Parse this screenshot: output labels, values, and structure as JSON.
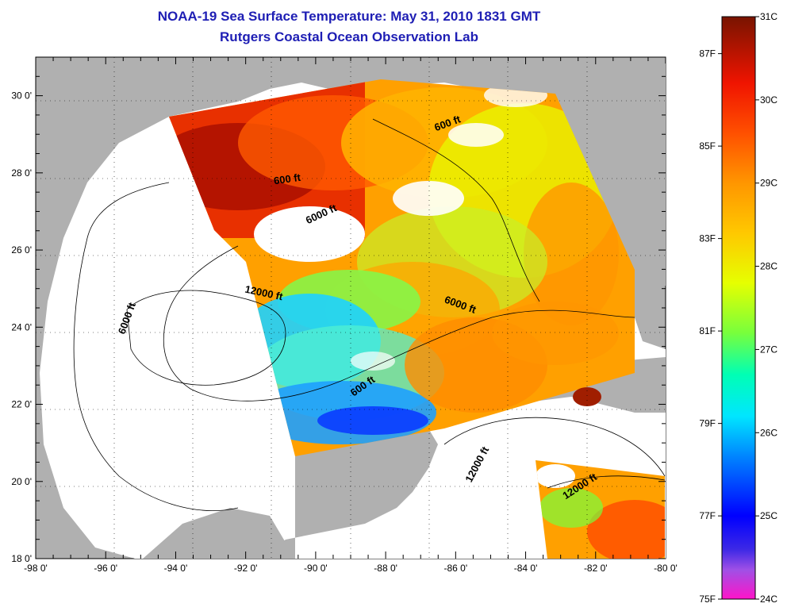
{
  "title_line1": "NOAA-19 Sea Surface Temperature:  May 31, 2010 1831 GMT",
  "title_line2": "Rutgers Coastal Ocean Observation Lab",
  "x_ticks": [
    "-98 0'",
    "-96 0'",
    "-94 0'",
    "-92 0'",
    "-90 0'",
    "-88 0'",
    "-86 0'",
    "-84 0'",
    "-82 0'",
    "-80 0'"
  ],
  "y_ticks": [
    "30 0'",
    "28 0'",
    "26 0'",
    "24 0'",
    "22 0'",
    "20 0'",
    "18 0'"
  ],
  "contour_labels": [
    {
      "text": "600 ft",
      "lon": -90.8,
      "lat": 27.75,
      "angle": -8
    },
    {
      "text": "6000 ft",
      "lon": -89.8,
      "lat": 26.85,
      "angle": -25
    },
    {
      "text": "600 ft",
      "lon": -86.2,
      "lat": 29.2,
      "angle": -20
    },
    {
      "text": "12000 ft",
      "lon": -91.5,
      "lat": 24.8,
      "angle": 12
    },
    {
      "text": "6000 ft",
      "lon": -95.3,
      "lat": 24.2,
      "angle": -70
    },
    {
      "text": "6000 ft",
      "lon": -85.9,
      "lat": 24.5,
      "angle": 20
    },
    {
      "text": "600 ft",
      "lon": -88.6,
      "lat": 22.4,
      "angle": -35
    },
    {
      "text": "12000 ft",
      "lon": -85.3,
      "lat": 20.4,
      "angle": -62
    },
    {
      "text": "12000 ft",
      "lon": -82.4,
      "lat": 19.8,
      "angle": -33
    }
  ],
  "colorbar": {
    "celsius_labels": [
      "31C",
      "30C",
      "29C",
      "28C",
      "27C",
      "26C",
      "25C",
      "24C"
    ],
    "fahrenheit_labels": [
      "87F",
      "85F",
      "83F",
      "81F",
      "79F",
      "77F",
      "75F"
    ],
    "celsius_min": 24,
    "celsius_max": 31,
    "stops": [
      {
        "c": 24.0,
        "color": "#ff14c8"
      },
      {
        "c": 24.35,
        "color": "#a050e6"
      },
      {
        "c": 24.6,
        "color": "#3c28e6"
      },
      {
        "c": 25.0,
        "color": "#0000ff"
      },
      {
        "c": 25.7,
        "color": "#0082ff"
      },
      {
        "c": 26.2,
        "color": "#00e6ff"
      },
      {
        "c": 26.7,
        "color": "#00ffb4"
      },
      {
        "c": 27.2,
        "color": "#78ff3c"
      },
      {
        "c": 27.8,
        "color": "#e6ff00"
      },
      {
        "c": 28.4,
        "color": "#ffc800"
      },
      {
        "c": 29.0,
        "color": "#ff9600"
      },
      {
        "c": 29.6,
        "color": "#ff5000"
      },
      {
        "c": 30.2,
        "color": "#f01400"
      },
      {
        "c": 31.0,
        "color": "#781400"
      }
    ]
  },
  "colors": {
    "land": "#b0b0b0",
    "water_nodata": "#ffffff",
    "contour": "#000000",
    "title": "#1e1eb4"
  }
}
